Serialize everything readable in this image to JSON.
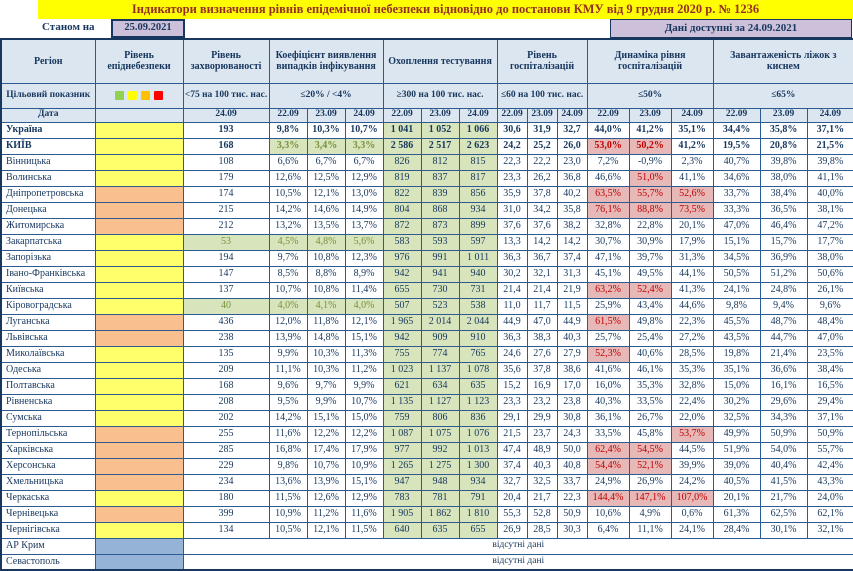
{
  "title": "Індикатори визначення рівнів епідемічної небезпеки відновідно до постанови КМУ від 9 грудня 2020 р. № 1236",
  "meta": {
    "as_of_label": "Станом на",
    "as_of_date": "25.09.2021",
    "available": "Дані доступні за 24.09.2021"
  },
  "colors": {
    "title_bg": "#FFFF00",
    "title_text": "#972E25",
    "lavender": "#CCC0DA",
    "header_bg": "#DCE6F1",
    "border": "#2E5B8F",
    "border_dark": "#17375E",
    "text": "#17375E",
    "red_text": "#C00000",
    "green_text": "#76933C",
    "fill_green": "#D7E4BC",
    "fill_pink": "#E6B8B7",
    "level_yellow": "#FFFF6B",
    "level_orange": "#FABF8F",
    "level_nodata": "#95B3D7",
    "sq_green": "#92D050",
    "sq_yellow": "#FFFF00",
    "sq_orange": "#FFC000",
    "sq_red": "#FF0000"
  },
  "chart_data": {
    "type": "table",
    "header": {
      "region": "Регіон",
      "level": "Рівень епіднебезпеки",
      "target_label": "Цільовий показник",
      "date_label": "Дата",
      "target_levels": [
        "green",
        "yellow",
        "orange",
        "red"
      ]
    },
    "groups": [
      {
        "title": "Рівень захворюваності",
        "target": "<75 на 100 тис. нас.",
        "dates": [
          "24.09"
        ]
      },
      {
        "title": "Коефіцієнт виявлення випадків інфікування",
        "target": "≤20% / <4%",
        "dates": [
          "22.09",
          "23.09",
          "24.09"
        ]
      },
      {
        "title": "Охоплення тестування",
        "target": "≥300 на 100 тис. нас.",
        "dates": [
          "22.09",
          "23.09",
          "24.09"
        ]
      },
      {
        "title": "Рівень госпіталізацій",
        "target": "≤60 на 100 тис. нас.",
        "dates": [
          "22.09",
          "23.09",
          "24.09"
        ]
      },
      {
        "title": "Динаміка рівня госпіталізацій",
        "target": "≤50%",
        "dates": [
          "22.09",
          "23.09",
          "24.09"
        ]
      },
      {
        "title": "Завантаженість ліжок з киснем",
        "target": "≤65%",
        "dates": [
          "22.09",
          "23.09",
          "24.09"
        ]
      }
    ],
    "no_data_text": "відсутні дані",
    "rows": [
      {
        "region": "Україна",
        "bold": true,
        "level": "yellow",
        "values": [
          "193",
          "9,8%",
          "10,3%",
          "10,7%",
          "1 041",
          "1 052",
          "1 066",
          "30,6",
          "31,9",
          "32,7",
          "44,0%",
          "41,2%",
          "35,1%",
          "34,4%",
          "35,8%",
          "37,1%"
        ],
        "fills": "wwwwGGGwwwwwwwww"
      },
      {
        "region": "КИЇВ",
        "bold": true,
        "level": "yellow",
        "values": [
          "168",
          "3,3%",
          "3,4%",
          "3,3%",
          "2 586",
          "2 517",
          "2 623",
          "24,2",
          "25,2",
          "26,0",
          "53,0%",
          "50,2%",
          "41,2%",
          "19,5%",
          "20,8%",
          "21,5%"
        ],
        "fills": "wgggGGGwwwppwwww"
      },
      {
        "region": "Вінницька",
        "level": "yellow",
        "values": [
          "108",
          "6,6%",
          "6,7%",
          "6,7%",
          "826",
          "812",
          "815",
          "22,3",
          "22,2",
          "23,0",
          "7,2%",
          "-0,9%",
          "2,3%",
          "40,7%",
          "39,8%",
          "39,8%"
        ],
        "fills": "wwwwGGGwwwwwwwww"
      },
      {
        "region": "Волинська",
        "level": "yellow",
        "values": [
          "179",
          "12,6%",
          "12,5%",
          "12,9%",
          "819",
          "837",
          "817",
          "23,3",
          "26,2",
          "36,8",
          "46,6%",
          "51,0%",
          "41,1%",
          "34,6%",
          "38,0%",
          "41,1%"
        ],
        "fills": "wwwwGGGwwwwpwwww"
      },
      {
        "region": "Дніпропетровська",
        "level": "orange",
        "values": [
          "174",
          "10,5%",
          "12,1%",
          "13,0%",
          "822",
          "839",
          "856",
          "35,9",
          "37,8",
          "40,2",
          "63,5%",
          "55,7%",
          "52,6%",
          "33,7%",
          "38,4%",
          "40,0%"
        ],
        "fills": "wwwwGGGwwwpppwww"
      },
      {
        "region": "Донецька",
        "level": "orange",
        "values": [
          "215",
          "14,2%",
          "14,6%",
          "14,9%",
          "804",
          "868",
          "934",
          "31,0",
          "34,2",
          "35,8",
          "76,1%",
          "88,8%",
          "73,5%",
          "33,3%",
          "36,5%",
          "38,1%"
        ],
        "fills": "wwwwGGGwwwpppwww"
      },
      {
        "region": "Житомирська",
        "level": "orange",
        "values": [
          "212",
          "13,2%",
          "13,5%",
          "13,7%",
          "872",
          "873",
          "899",
          "37,6",
          "37,6",
          "38,2",
          "32,8%",
          "22,8%",
          "20,1%",
          "47,0%",
          "46,4%",
          "47,2%"
        ],
        "fills": "wwwwGGGwwwwwwwww"
      },
      {
        "region": "Закарпатська",
        "level": "yellow",
        "values": [
          "53",
          "4,5%",
          "4,8%",
          "5,6%",
          "583",
          "593",
          "597",
          "13,3",
          "14,2",
          "14,2",
          "30,7%",
          "30,9%",
          "17,9%",
          "15,1%",
          "15,7%",
          "17,7%"
        ],
        "fills": "ggggGGGwwwwwwwww"
      },
      {
        "region": "Запорізька",
        "level": "yellow",
        "values": [
          "194",
          "9,7%",
          "10,8%",
          "12,3%",
          "976",
          "991",
          "1 011",
          "36,3",
          "36,7",
          "37,4",
          "47,1%",
          "39,7%",
          "31,3%",
          "34,5%",
          "36,9%",
          "38,0%"
        ],
        "fills": "wwwwGGGwwwwwwwww"
      },
      {
        "region": "Івано-Франківська",
        "level": "yellow",
        "values": [
          "147",
          "8,5%",
          "8,8%",
          "8,9%",
          "942",
          "941",
          "940",
          "30,2",
          "32,1",
          "31,3",
          "45,1%",
          "49,5%",
          "44,1%",
          "50,5%",
          "51,2%",
          "50,6%"
        ],
        "fills": "wwwwGGGwwwwwwwww"
      },
      {
        "region": "Київська",
        "level": "yellow",
        "values": [
          "137",
          "10,7%",
          "10,8%",
          "11,4%",
          "655",
          "730",
          "731",
          "21,4",
          "21,4",
          "21,9",
          "63,2%",
          "52,4%",
          "41,3%",
          "24,1%",
          "24,8%",
          "26,1%"
        ],
        "fills": "wwwwGGGwwwppwwww"
      },
      {
        "region": "Кіровоградська",
        "level": "yellow",
        "values": [
          "40",
          "4,0%",
          "4,1%",
          "4,0%",
          "507",
          "523",
          "538",
          "11,0",
          "11,7",
          "11,5",
          "25,9%",
          "43,4%",
          "44,6%",
          "9,8%",
          "9,4%",
          "9,6%"
        ],
        "fills": "ggggGGGwwwwwwwww"
      },
      {
        "region": "Луганська",
        "level": "orange",
        "values": [
          "436",
          "12,0%",
          "11,8%",
          "12,1%",
          "1 965",
          "2 014",
          "2 044",
          "44,9",
          "47,0",
          "44,9",
          "61,5%",
          "49,8%",
          "22,3%",
          "45,5%",
          "48,7%",
          "48,4%"
        ],
        "fills": "wwwwGGGwwwpwwwww"
      },
      {
        "region": "Львівська",
        "level": "orange",
        "values": [
          "238",
          "13,9%",
          "14,8%",
          "15,1%",
          "942",
          "909",
          "910",
          "36,3",
          "38,3",
          "40,3",
          "25,7%",
          "25,4%",
          "27,2%",
          "43,5%",
          "44,7%",
          "47,0%"
        ],
        "fills": "wwwwGGGwwwwwwwww"
      },
      {
        "region": "Миколаївська",
        "level": "yellow",
        "values": [
          "135",
          "9,9%",
          "10,3%",
          "11,3%",
          "755",
          "774",
          "765",
          "24,6",
          "27,6",
          "27,9",
          "52,3%",
          "40,6%",
          "28,5%",
          "19,8%",
          "21,4%",
          "23,5%"
        ],
        "fills": "wwwwGGGwwwpwwwww"
      },
      {
        "region": "Одеська",
        "level": "yellow",
        "values": [
          "209",
          "11,1%",
          "10,3%",
          "11,2%",
          "1 023",
          "1 137",
          "1 078",
          "35,6",
          "37,8",
          "38,6",
          "41,6%",
          "46,1%",
          "35,3%",
          "35,1%",
          "36,6%",
          "38,4%"
        ],
        "fills": "wwwwGGGwwwwwwwww"
      },
      {
        "region": "Полтавська",
        "level": "yellow",
        "values": [
          "168",
          "9,6%",
          "9,7%",
          "9,9%",
          "621",
          "634",
          "635",
          "15,2",
          "16,9",
          "17,0",
          "16,0%",
          "35,3%",
          "32,8%",
          "15,0%",
          "16,1%",
          "16,5%"
        ],
        "fills": "wwwwGGGwwwwwwwww"
      },
      {
        "region": "Рівненська",
        "level": "yellow",
        "values": [
          "208",
          "9,5%",
          "9,9%",
          "10,7%",
          "1 135",
          "1 127",
          "1 123",
          "23,3",
          "23,2",
          "23,8",
          "40,3%",
          "33,5%",
          "22,4%",
          "30,2%",
          "29,6%",
          "29,4%"
        ],
        "fills": "wwwwGGGwwwwwwwww"
      },
      {
        "region": "Сумська",
        "level": "yellow",
        "values": [
          "202",
          "14,2%",
          "15,1%",
          "15,0%",
          "759",
          "806",
          "836",
          "29,1",
          "29,9",
          "30,8",
          "36,1%",
          "26,7%",
          "22,0%",
          "32,5%",
          "34,3%",
          "37,1%"
        ],
        "fills": "wwwwGGGwwwwwwwww"
      },
      {
        "region": "Тернопільська",
        "level": "orange",
        "values": [
          "255",
          "11,6%",
          "12,2%",
          "12,2%",
          "1 087",
          "1 075",
          "1 076",
          "21,5",
          "23,7",
          "24,3",
          "33,5%",
          "45,8%",
          "53,7%",
          "49,9%",
          "50,9%",
          "50,9%"
        ],
        "fills": "wwwwGGGwwwwwpwww"
      },
      {
        "region": "Харківська",
        "level": "orange",
        "values": [
          "285",
          "16,8%",
          "17,4%",
          "17,9%",
          "977",
          "992",
          "1 013",
          "47,4",
          "48,9",
          "50,0",
          "62,4%",
          "54,5%",
          "44,5%",
          "51,9%",
          "54,0%",
          "55,7%"
        ],
        "fills": "wwwwGGGwwwppwwww"
      },
      {
        "region": "Херсонська",
        "level": "orange",
        "values": [
          "229",
          "9,8%",
          "10,7%",
          "10,9%",
          "1 265",
          "1 275",
          "1 300",
          "37,4",
          "40,3",
          "40,8",
          "54,4%",
          "52,1%",
          "39,9%",
          "39,0%",
          "40,4%",
          "42,4%"
        ],
        "fills": "wwwwGGGwwwppwwww"
      },
      {
        "region": "Хмельницька",
        "level": "orange",
        "values": [
          "234",
          "13,6%",
          "13,9%",
          "15,1%",
          "947",
          "948",
          "934",
          "32,7",
          "32,5",
          "33,7",
          "24,9%",
          "26,9%",
          "24,2%",
          "40,5%",
          "41,5%",
          "43,3%"
        ],
        "fills": "wwwwGGGwwwwwwwww"
      },
      {
        "region": "Черкаська",
        "level": "yellow",
        "values": [
          "180",
          "11,5%",
          "12,6%",
          "12,9%",
          "783",
          "781",
          "791",
          "20,4",
          "21,7",
          "22,3",
          "144,4%",
          "147,1%",
          "107,0%",
          "20,1%",
          "21,7%",
          "24,0%"
        ],
        "fills": "wwwwGGGwwwpppwww"
      },
      {
        "region": "Чернівецька",
        "level": "orange",
        "values": [
          "399",
          "10,9%",
          "11,2%",
          "11,6%",
          "1 905",
          "1 862",
          "1 810",
          "55,3",
          "52,8",
          "50,9",
          "10,6%",
          "4,9%",
          "0,6%",
          "61,3%",
          "62,5%",
          "62,1%"
        ],
        "fills": "wwwwGGGwwwwwwwww"
      },
      {
        "region": "Чернігівська",
        "level": "yellow",
        "values": [
          "134",
          "10,5%",
          "12,1%",
          "11,5%",
          "640",
          "635",
          "655",
          "26,9",
          "28,5",
          "30,3",
          "6,4%",
          "11,1%",
          "24,1%",
          "28,4%",
          "30,1%",
          "32,1%"
        ],
        "fills": "wwwwGGGwwwwwwwww"
      },
      {
        "region": "АР Крим",
        "level": "none",
        "no_data": true
      },
      {
        "region": "Севастополь",
        "level": "none",
        "no_data": true
      }
    ]
  }
}
